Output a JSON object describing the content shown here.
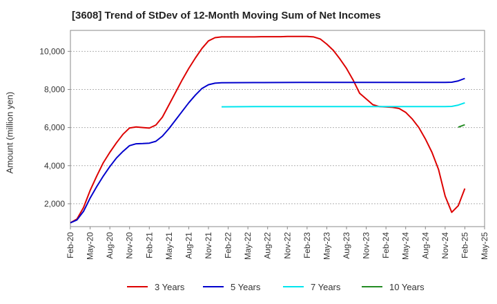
{
  "chart_data": {
    "type": "line",
    "title": "[3608]  Trend of StDev of 12-Month Moving Sum of Net Incomes",
    "xlabel": "",
    "ylabel": "Amount (million yen)",
    "ylim": [
      800,
      11100
    ],
    "yticks": [
      2000,
      4000,
      6000,
      8000,
      10000
    ],
    "ytick_labels": [
      "2,000",
      "4,000",
      "6,000",
      "8,000",
      "10,000"
    ],
    "xlim": [
      "2020-02",
      "2025-05"
    ],
    "xtick_labels": [
      "Feb-20",
      "May-20",
      "Aug-20",
      "Nov-20",
      "Feb-21",
      "May-21",
      "Aug-21",
      "Nov-21",
      "Feb-22",
      "May-22",
      "Aug-22",
      "Nov-22",
      "Feb-23",
      "May-23",
      "Aug-23",
      "Nov-23",
      "Feb-24",
      "May-24",
      "Aug-24",
      "Nov-24",
      "Feb-25",
      "May-25"
    ],
    "grid": "y dashed",
    "legend_position": "bottom",
    "series": [
      {
        "name": "3 Years",
        "color": "#dd0000",
        "points": [
          [
            "2020-02",
            1000
          ],
          [
            "2020-03",
            1200
          ],
          [
            "2020-04",
            1800
          ],
          [
            "2020-05",
            2700
          ],
          [
            "2020-06",
            3450
          ],
          [
            "2020-07",
            4150
          ],
          [
            "2020-08",
            4700
          ],
          [
            "2020-09",
            5200
          ],
          [
            "2020-10",
            5650
          ],
          [
            "2020-11",
            5980
          ],
          [
            "2020-12",
            6030
          ],
          [
            "2021-01",
            6000
          ],
          [
            "2021-02",
            5970
          ],
          [
            "2021-03",
            6130
          ],
          [
            "2021-04",
            6550
          ],
          [
            "2021-05",
            7200
          ],
          [
            "2021-06",
            7850
          ],
          [
            "2021-07",
            8500
          ],
          [
            "2021-08",
            9100
          ],
          [
            "2021-09",
            9650
          ],
          [
            "2021-10",
            10150
          ],
          [
            "2021-11",
            10550
          ],
          [
            "2021-12",
            10720
          ],
          [
            "2022-01",
            10760
          ],
          [
            "2022-02",
            10760
          ],
          [
            "2022-03",
            10760
          ],
          [
            "2022-04",
            10760
          ],
          [
            "2022-05",
            10760
          ],
          [
            "2022-06",
            10760
          ],
          [
            "2022-07",
            10770
          ],
          [
            "2022-08",
            10770
          ],
          [
            "2022-09",
            10770
          ],
          [
            "2022-10",
            10770
          ],
          [
            "2022-11",
            10780
          ],
          [
            "2022-12",
            10780
          ],
          [
            "2023-01",
            10780
          ],
          [
            "2023-02",
            10780
          ],
          [
            "2023-03",
            10760
          ],
          [
            "2023-04",
            10650
          ],
          [
            "2023-05",
            10380
          ],
          [
            "2023-06",
            10050
          ],
          [
            "2023-07",
            9600
          ],
          [
            "2023-08",
            9100
          ],
          [
            "2023-09",
            8500
          ],
          [
            "2023-10",
            7800
          ],
          [
            "2023-11",
            7500
          ],
          [
            "2023-12",
            7200
          ],
          [
            "2024-01",
            7100
          ],
          [
            "2024-02",
            7080
          ],
          [
            "2024-03",
            7060
          ],
          [
            "2024-04",
            7000
          ],
          [
            "2024-05",
            6800
          ],
          [
            "2024-06",
            6450
          ],
          [
            "2024-07",
            6000
          ],
          [
            "2024-08",
            5400
          ],
          [
            "2024-09",
            4700
          ],
          [
            "2024-10",
            3800
          ],
          [
            "2024-11",
            2400
          ],
          [
            "2024-12",
            1550
          ],
          [
            "2025-01",
            1900
          ],
          [
            "2025-02",
            2800
          ]
        ]
      },
      {
        "name": "5 Years",
        "color": "#0000cc",
        "points": [
          [
            "2020-02",
            1000
          ],
          [
            "2020-03",
            1150
          ],
          [
            "2020-04",
            1600
          ],
          [
            "2020-05",
            2300
          ],
          [
            "2020-06",
            2900
          ],
          [
            "2020-07",
            3450
          ],
          [
            "2020-08",
            3950
          ],
          [
            "2020-09",
            4400
          ],
          [
            "2020-10",
            4750
          ],
          [
            "2020-11",
            5050
          ],
          [
            "2020-12",
            5150
          ],
          [
            "2021-01",
            5160
          ],
          [
            "2021-02",
            5180
          ],
          [
            "2021-03",
            5280
          ],
          [
            "2021-04",
            5550
          ],
          [
            "2021-05",
            5950
          ],
          [
            "2021-06",
            6400
          ],
          [
            "2021-07",
            6850
          ],
          [
            "2021-08",
            7300
          ],
          [
            "2021-09",
            7700
          ],
          [
            "2021-10",
            8050
          ],
          [
            "2021-11",
            8250
          ],
          [
            "2021-12",
            8330
          ],
          [
            "2022-01",
            8350
          ],
          [
            "2022-06",
            8360
          ],
          [
            "2023-01",
            8370
          ],
          [
            "2023-08",
            8370
          ],
          [
            "2024-02",
            8370
          ],
          [
            "2024-08",
            8370
          ],
          [
            "2024-11",
            8370
          ],
          [
            "2024-12",
            8380
          ],
          [
            "2025-01",
            8450
          ],
          [
            "2025-02",
            8580
          ]
        ]
      },
      {
        "name": "7 Years",
        "color": "#00e5ee",
        "points": [
          [
            "2022-01",
            7090
          ],
          [
            "2022-06",
            7100
          ],
          [
            "2023-01",
            7100
          ],
          [
            "2023-08",
            7100
          ],
          [
            "2024-02",
            7100
          ],
          [
            "2024-08",
            7100
          ],
          [
            "2024-11",
            7100
          ],
          [
            "2024-12",
            7110
          ],
          [
            "2025-01",
            7180
          ],
          [
            "2025-02",
            7300
          ]
        ]
      },
      {
        "name": "10 Years",
        "color": "#228b22",
        "points": [
          [
            "2025-01",
            6020
          ],
          [
            "2025-02",
            6150
          ]
        ]
      }
    ]
  }
}
